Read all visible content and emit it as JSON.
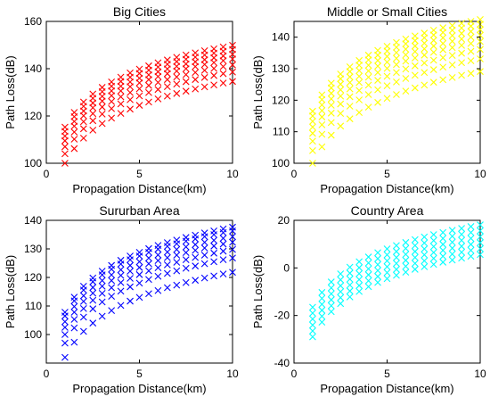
{
  "chart_data": [
    {
      "type": "scatter",
      "title": "Big Cities",
      "xlabel": "Propagation Distance(km)",
      "ylabel": "Path Loss(dB)",
      "xlim": [
        0,
        10
      ],
      "ylim": [
        100,
        160
      ],
      "xticks": [
        0,
        5,
        10
      ],
      "yticks": [
        100,
        120,
        140,
        160
      ],
      "marker": "x",
      "color": "#ff0000",
      "grid": false,
      "x": [
        1,
        1.5,
        2,
        2.5,
        3,
        3.5,
        4,
        4.5,
        5,
        5.5,
        6,
        6.5,
        7,
        7.5,
        8,
        8.5,
        9,
        9.5,
        10
      ],
      "series": [
        {
          "values": [
            100,
            106.2,
            110.6,
            114.0,
            116.8,
            119.1,
            121.1,
            122.9,
            124.5,
            125.9,
            127.2,
            128.4,
            129.5,
            130.5,
            131.4,
            132.3,
            133.1,
            133.9,
            134.6
          ]
        },
        {
          "values": [
            104,
            110.2,
            114.6,
            118.0,
            120.8,
            123.1,
            125.1,
            126.9,
            128.5,
            129.9,
            131.2,
            132.4,
            133.5,
            134.5,
            135.4,
            136.3,
            137.1,
            137.9,
            138.6
          ]
        },
        {
          "values": [
            107,
            113.2,
            117.6,
            121.0,
            123.8,
            126.1,
            128.1,
            129.9,
            131.5,
            132.9,
            134.2,
            135.4,
            136.5,
            137.5,
            138.4,
            139.3,
            140.1,
            140.9,
            141.6
          ]
        },
        {
          "values": [
            109.5,
            115.7,
            120.1,
            123.5,
            126.3,
            128.6,
            130.6,
            132.4,
            134.0,
            135.4,
            136.7,
            137.9,
            139.0,
            140.0,
            140.9,
            141.8,
            142.6,
            143.4,
            144.1
          ]
        },
        {
          "values": [
            111.5,
            117.7,
            122.1,
            125.5,
            128.3,
            130.6,
            132.6,
            134.4,
            136.0,
            137.4,
            138.7,
            139.9,
            141.0,
            142.0,
            142.9,
            143.8,
            144.6,
            145.4,
            146.1
          ]
        },
        {
          "values": [
            113.5,
            119.7,
            124.1,
            127.5,
            130.3,
            132.6,
            134.6,
            136.4,
            138.0,
            139.4,
            140.7,
            141.9,
            143.0,
            144.0,
            144.9,
            145.8,
            146.6,
            147.4,
            148.1
          ]
        },
        {
          "values": [
            115.3,
            121.5,
            125.9,
            129.3,
            132.1,
            134.4,
            136.4,
            138.2,
            139.8,
            141.2,
            142.5,
            143.7,
            144.8,
            145.8,
            146.7,
            147.6,
            148.4,
            149.2,
            149.9
          ]
        }
      ]
    },
    {
      "type": "scatter",
      "title": "Middle or Small Cities",
      "xlabel": "Propagation Distance(km)",
      "ylabel": "Path Loss(dB)",
      "xlim": [
        0,
        10
      ],
      "ylim": [
        100,
        145
      ],
      "xticks": [
        0,
        5,
        10
      ],
      "yticks": [
        100,
        110,
        120,
        130,
        140
      ],
      "marker": "x",
      "color": "#ffff00",
      "grid": false,
      "x": [
        1,
        1.5,
        2,
        2.5,
        3,
        3.5,
        4,
        4.5,
        5,
        5.5,
        6,
        6.5,
        7,
        7.5,
        8,
        8.5,
        9,
        9.5,
        10
      ],
      "series": [
        {
          "values": [
            100,
            105.2,
            108.9,
            111.8,
            114.1,
            116.1,
            117.8,
            119.3,
            120.6,
            121.8,
            122.9,
            123.9,
            124.8,
            125.7,
            126.5,
            127.2,
            127.9,
            128.5,
            129.1
          ]
        },
        {
          "values": [
            104,
            109.2,
            112.9,
            115.8,
            118.1,
            120.1,
            121.8,
            123.3,
            124.6,
            125.8,
            126.9,
            127.9,
            128.8,
            129.7,
            130.5,
            131.2,
            131.9,
            132.5,
            133.1
          ]
        },
        {
          "values": [
            107,
            112.2,
            115.9,
            118.8,
            121.1,
            123.1,
            124.8,
            126.3,
            127.6,
            128.8,
            129.9,
            130.9,
            131.8,
            132.7,
            133.5,
            134.2,
            134.9,
            135.5,
            136.1
          ]
        },
        {
          "values": [
            109.5,
            114.7,
            118.4,
            121.3,
            123.6,
            125.6,
            127.3,
            128.8,
            130.1,
            131.3,
            132.4,
            133.4,
            134.3,
            135.2,
            136.0,
            136.7,
            137.4,
            138.0,
            138.6
          ]
        },
        {
          "values": [
            111.5,
            116.7,
            120.4,
            123.3,
            125.6,
            127.6,
            129.3,
            130.8,
            132.1,
            133.3,
            134.4,
            135.4,
            136.3,
            137.2,
            138.0,
            138.7,
            139.4,
            140.0,
            140.6
          ]
        },
        {
          "values": [
            113.3,
            118.5,
            122.2,
            125.1,
            127.4,
            129.4,
            131.1,
            132.6,
            133.9,
            135.1,
            136.2,
            137.2,
            138.1,
            139.0,
            139.8,
            140.5,
            141.2,
            141.8,
            142.4
          ]
        },
        {
          "values": [
            115.0,
            120.2,
            123.9,
            126.8,
            129.1,
            131.1,
            132.8,
            134.3,
            135.6,
            136.8,
            137.9,
            138.9,
            139.8,
            140.7,
            141.5,
            142.2,
            142.9,
            143.5,
            144.1
          ]
        },
        {
          "values": [
            116.5,
            121.7,
            125.4,
            128.3,
            130.6,
            132.6,
            134.3,
            135.8,
            137.1,
            138.3,
            139.4,
            140.4,
            141.3,
            142.2,
            143.0,
            143.7,
            144.4,
            145.0,
            145.6
          ]
        }
      ]
    },
    {
      "type": "scatter",
      "title": "Sururban Area",
      "xlabel": "Propagation Distance(km)",
      "ylabel": "Path Loss(dB)",
      "xlim": [
        0,
        10
      ],
      "ylim": [
        90,
        140
      ],
      "xticks": [
        0,
        5,
        10
      ],
      "yticks": [
        100,
        110,
        120,
        130,
        140
      ],
      "marker": "x",
      "color": "#0000ff",
      "grid": false,
      "x": [
        1,
        1.5,
        2,
        2.5,
        3,
        3.5,
        4,
        4.5,
        5,
        5.5,
        6,
        6.5,
        7,
        7.5,
        8,
        8.5,
        9,
        9.5,
        10
      ],
      "series": [
        {
          "values": [
            92,
            97.3,
            101.1,
            104.0,
            106.4,
            108.4,
            110.2,
            111.7,
            113.0,
            114.3,
            115.4,
            116.4,
            117.3,
            118.2,
            119.0,
            119.8,
            120.5,
            121.2,
            121.8
          ]
        },
        {
          "values": [
            97,
            102.3,
            106.1,
            109.0,
            111.4,
            113.4,
            115.2,
            116.7,
            118.0,
            119.3,
            120.4,
            121.4,
            122.3,
            123.2,
            124.0,
            124.8,
            125.5,
            126.2,
            126.8
          ]
        },
        {
          "values": [
            100,
            105.3,
            109.1,
            112.0,
            114.4,
            116.4,
            118.2,
            119.7,
            121.0,
            122.3,
            123.4,
            124.4,
            125.3,
            126.2,
            127.0,
            127.8,
            128.5,
            129.2,
            129.8
          ]
        },
        {
          "values": [
            102.5,
            107.8,
            111.6,
            114.5,
            116.9,
            118.9,
            120.7,
            122.2,
            123.5,
            124.8,
            125.9,
            126.9,
            127.8,
            128.7,
            129.5,
            130.3,
            131.0,
            131.7,
            132.3
          ]
        },
        {
          "values": [
            104.5,
            109.8,
            113.6,
            116.5,
            118.9,
            120.9,
            122.7,
            124.2,
            125.5,
            126.8,
            127.9,
            128.9,
            129.8,
            130.7,
            131.5,
            132.3,
            133.0,
            133.7,
            134.3
          ]
        },
        {
          "values": [
            106.5,
            111.8,
            115.6,
            118.5,
            120.9,
            122.9,
            124.7,
            126.2,
            127.5,
            128.8,
            129.9,
            130.9,
            131.8,
            132.7,
            133.5,
            134.3,
            135.0,
            135.7,
            136.3
          ]
        },
        {
          "values": [
            107.8,
            113.1,
            116.9,
            119.8,
            122.2,
            124.2,
            126.0,
            127.5,
            128.8,
            130.1,
            131.2,
            132.2,
            133.1,
            134.0,
            134.8,
            135.6,
            136.3,
            137.0,
            137.6
          ]
        }
      ]
    },
    {
      "type": "scatter",
      "title": "Country Area",
      "xlabel": "Propagation Distance(km)",
      "ylabel": "Path Loss(dB)",
      "xlim": [
        0,
        10
      ],
      "ylim": [
        -40,
        20
      ],
      "xticks": [
        0,
        5,
        10
      ],
      "yticks": [
        -40,
        -20,
        0,
        20
      ],
      "marker": "x",
      "color": "#00ffff",
      "grid": false,
      "x": [
        1,
        1.5,
        2,
        2.5,
        3,
        3.5,
        4,
        4.5,
        5,
        5.5,
        6,
        6.5,
        7,
        7.5,
        8,
        8.5,
        9,
        9.5,
        10
      ],
      "series": [
        {
          "values": [
            -29,
            -22.8,
            -18.4,
            -15.0,
            -12.2,
            -9.9,
            -7.9,
            -6.1,
            -4.5,
            -3.1,
            -1.8,
            -0.6,
            0.5,
            1.5,
            2.4,
            3.3,
            4.1,
            4.9,
            5.6
          ]
        },
        {
          "values": [
            -26.5,
            -20.3,
            -15.9,
            -12.5,
            -9.7,
            -7.4,
            -5.4,
            -3.6,
            -2.0,
            -0.6,
            0.7,
            1.9,
            3.0,
            4.0,
            4.9,
            5.8,
            6.6,
            7.4,
            8.1
          ]
        },
        {
          "values": [
            -24,
            -17.8,
            -13.4,
            -10.0,
            -7.2,
            -4.9,
            -2.9,
            -1.1,
            0.5,
            1.9,
            3.2,
            4.4,
            5.5,
            6.5,
            7.4,
            8.3,
            9.1,
            9.9,
            10.6
          ]
        },
        {
          "values": [
            -21.5,
            -15.3,
            -10.9,
            -7.5,
            -4.7,
            -2.4,
            -0.4,
            1.4,
            3.0,
            4.4,
            5.7,
            6.9,
            8.0,
            9.0,
            9.9,
            10.8,
            11.6,
            12.4,
            13.1
          ]
        },
        {
          "values": [
            -19,
            -12.8,
            -8.4,
            -5.0,
            -2.2,
            0.1,
            2.1,
            3.9,
            5.5,
            6.9,
            8.2,
            9.4,
            10.5,
            11.5,
            12.4,
            13.3,
            14.1,
            14.9,
            15.6
          ]
        },
        {
          "values": [
            -16.5,
            -10.3,
            -5.9,
            -2.5,
            0.3,
            2.6,
            4.6,
            6.4,
            8.0,
            9.4,
            10.7,
            11.9,
            13.0,
            14.0,
            14.9,
            15.8,
            16.6,
            17.4,
            18.1
          ]
        }
      ]
    }
  ]
}
